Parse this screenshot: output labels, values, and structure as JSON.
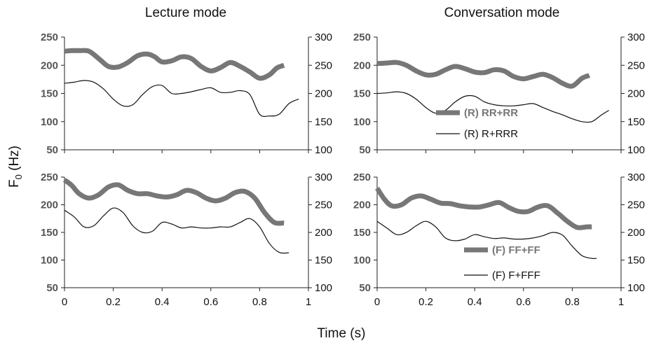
{
  "figure": {
    "col_titles": [
      "Lecture mode",
      "Conversation mode"
    ],
    "ylabel_main": "F",
    "ylabel_sub": "0",
    "ylabel_unit": " (Hz)",
    "xlabel": "Time (s)"
  },
  "chart_data": [
    {
      "type": "line",
      "panel": "top-left",
      "title": "Lecture mode",
      "xlim": [
        0,
        1
      ],
      "xticks": [
        "0",
        "0.2",
        "0.4",
        "0.6",
        "0.8",
        "1"
      ],
      "ylim_left": [
        50,
        250
      ],
      "yticks_left": [
        "50",
        "100",
        "150",
        "200",
        "250"
      ],
      "ylim_right": [
        100,
        300
      ],
      "yticks_right": [
        "100",
        "150",
        "200",
        "250",
        "300"
      ],
      "grid": false,
      "series": [
        {
          "axis": "left",
          "style": "thick",
          "color": "#777777",
          "x": [
            0,
            0.03,
            0.06,
            0.1,
            0.14,
            0.18,
            0.22,
            0.26,
            0.3,
            0.34,
            0.37,
            0.4,
            0.44,
            0.48,
            0.52,
            0.56,
            0.6,
            0.64,
            0.68,
            0.72,
            0.76,
            0.8,
            0.84,
            0.87,
            0.9
          ],
          "y": [
            225,
            226,
            226,
            225,
            212,
            198,
            197,
            205,
            217,
            220,
            215,
            206,
            208,
            215,
            212,
            198,
            190,
            196,
            205,
            198,
            188,
            177,
            183,
            195,
            200
          ]
        },
        {
          "axis": "right",
          "style": "thin",
          "color": "#111111",
          "x": [
            0,
            0.04,
            0.08,
            0.12,
            0.16,
            0.2,
            0.24,
            0.28,
            0.32,
            0.36,
            0.4,
            0.44,
            0.48,
            0.52,
            0.56,
            0.6,
            0.64,
            0.68,
            0.72,
            0.76,
            0.8,
            0.84,
            0.88,
            0.92,
            0.96
          ],
          "y": [
            218,
            220,
            223,
            220,
            208,
            190,
            178,
            180,
            198,
            212,
            214,
            200,
            200,
            203,
            207,
            210,
            202,
            202,
            205,
            198,
            163,
            160,
            163,
            182,
            190
          ]
        }
      ]
    },
    {
      "type": "line",
      "panel": "top-right",
      "title": "Conversation mode",
      "xlim": [
        0,
        1
      ],
      "xticks": [
        "0",
        "0.2",
        "0.4",
        "0.6",
        "0.8",
        "1"
      ],
      "ylim_left": [
        50,
        250
      ],
      "yticks_left": [
        "50",
        "100",
        "150",
        "200",
        "250"
      ],
      "ylim_right": [
        100,
        300
      ],
      "yticks_right": [
        "100",
        "150",
        "200",
        "250",
        "300"
      ],
      "grid": false,
      "legend": {
        "position": "right",
        "entries": [
          "(R) RR+RR",
          "(R) R+RRR"
        ]
      },
      "series": [
        {
          "name": "(R) RR+RR",
          "axis": "left",
          "style": "thick",
          "color": "#777777",
          "x": [
            0,
            0.04,
            0.08,
            0.12,
            0.16,
            0.2,
            0.24,
            0.28,
            0.32,
            0.36,
            0.4,
            0.44,
            0.48,
            0.52,
            0.56,
            0.6,
            0.64,
            0.68,
            0.72,
            0.76,
            0.8,
            0.84,
            0.87
          ],
          "y": [
            203,
            204,
            205,
            200,
            190,
            183,
            184,
            192,
            198,
            194,
            188,
            187,
            192,
            190,
            180,
            176,
            180,
            184,
            178,
            168,
            163,
            177,
            182
          ]
        },
        {
          "name": "(R) R+RRR",
          "axis": "right",
          "style": "thin",
          "color": "#111111",
          "x": [
            0,
            0.04,
            0.08,
            0.12,
            0.16,
            0.2,
            0.24,
            0.28,
            0.32,
            0.36,
            0.4,
            0.44,
            0.48,
            0.52,
            0.56,
            0.6,
            0.64,
            0.68,
            0.72,
            0.76,
            0.8,
            0.84,
            0.88,
            0.92,
            0.95
          ],
          "y": [
            200,
            201,
            203,
            200,
            190,
            175,
            165,
            170,
            185,
            195,
            195,
            185,
            180,
            178,
            178,
            180,
            182,
            175,
            168,
            162,
            155,
            150,
            150,
            162,
            170
          ]
        }
      ]
    },
    {
      "type": "line",
      "panel": "bottom-left",
      "xlim": [
        0,
        1
      ],
      "xticks": [
        "0",
        "0.2",
        "0.4",
        "0.6",
        "0.8",
        "1"
      ],
      "ylim_left": [
        50,
        250
      ],
      "yticks_left": [
        "50",
        "100",
        "150",
        "200",
        "250"
      ],
      "ylim_right": [
        100,
        300
      ],
      "yticks_right": [
        "100",
        "150",
        "200",
        "250",
        "300"
      ],
      "grid": false,
      "series": [
        {
          "axis": "left",
          "style": "thick",
          "color": "#777777",
          "x": [
            0,
            0.03,
            0.06,
            0.1,
            0.14,
            0.18,
            0.22,
            0.26,
            0.3,
            0.34,
            0.38,
            0.42,
            0.46,
            0.5,
            0.54,
            0.58,
            0.62,
            0.66,
            0.7,
            0.74,
            0.78,
            0.82,
            0.86,
            0.9
          ],
          "y": [
            245,
            235,
            220,
            212,
            218,
            232,
            236,
            226,
            220,
            220,
            216,
            214,
            218,
            226,
            222,
            212,
            207,
            212,
            222,
            224,
            212,
            186,
            168,
            167
          ]
        },
        {
          "axis": "right",
          "style": "thin",
          "color": "#111111",
          "x": [
            0,
            0.04,
            0.08,
            0.12,
            0.16,
            0.2,
            0.24,
            0.28,
            0.32,
            0.36,
            0.4,
            0.44,
            0.48,
            0.52,
            0.56,
            0.6,
            0.64,
            0.68,
            0.72,
            0.76,
            0.8,
            0.84,
            0.88,
            0.92
          ],
          "y": [
            240,
            228,
            210,
            212,
            230,
            244,
            236,
            212,
            200,
            202,
            218,
            215,
            208,
            210,
            208,
            208,
            210,
            210,
            218,
            225,
            210,
            180,
            164,
            163
          ]
        }
      ]
    },
    {
      "type": "line",
      "panel": "bottom-right",
      "xlim": [
        0,
        1
      ],
      "xticks": [
        "0",
        "0.2",
        "0.4",
        "0.6",
        "0.8",
        "1"
      ],
      "ylim_left": [
        50,
        250
      ],
      "yticks_left": [
        "50",
        "100",
        "150",
        "200",
        "250"
      ],
      "ylim_right": [
        100,
        300
      ],
      "yticks_right": [
        "100",
        "150",
        "200",
        "250",
        "300"
      ],
      "grid": false,
      "legend": {
        "position": "bottom-right",
        "entries": [
          "(F) FF+FF",
          "(F) F+FFF"
        ]
      },
      "series": [
        {
          "name": "(F) FF+FF",
          "axis": "left",
          "style": "thick",
          "color": "#777777",
          "x": [
            0,
            0.03,
            0.06,
            0.1,
            0.14,
            0.18,
            0.22,
            0.26,
            0.3,
            0.34,
            0.38,
            0.42,
            0.46,
            0.5,
            0.54,
            0.58,
            0.62,
            0.66,
            0.7,
            0.74,
            0.78,
            0.82,
            0.86,
            0.88
          ],
          "y": [
            230,
            210,
            198,
            200,
            212,
            216,
            210,
            203,
            202,
            198,
            196,
            196,
            200,
            204,
            195,
            188,
            188,
            196,
            198,
            185,
            170,
            159,
            160,
            160
          ]
        },
        {
          "name": "(F) F+FFF",
          "axis": "right",
          "style": "thin",
          "color": "#111111",
          "x": [
            0,
            0.04,
            0.08,
            0.12,
            0.16,
            0.2,
            0.24,
            0.28,
            0.32,
            0.36,
            0.4,
            0.44,
            0.48,
            0.52,
            0.56,
            0.6,
            0.64,
            0.68,
            0.72,
            0.76,
            0.8,
            0.84,
            0.88,
            0.9
          ],
          "y": [
            220,
            208,
            196,
            200,
            212,
            220,
            210,
            190,
            185,
            188,
            196,
            192,
            189,
            190,
            188,
            188,
            190,
            194,
            200,
            195,
            175,
            158,
            153,
            153
          ]
        }
      ]
    }
  ]
}
